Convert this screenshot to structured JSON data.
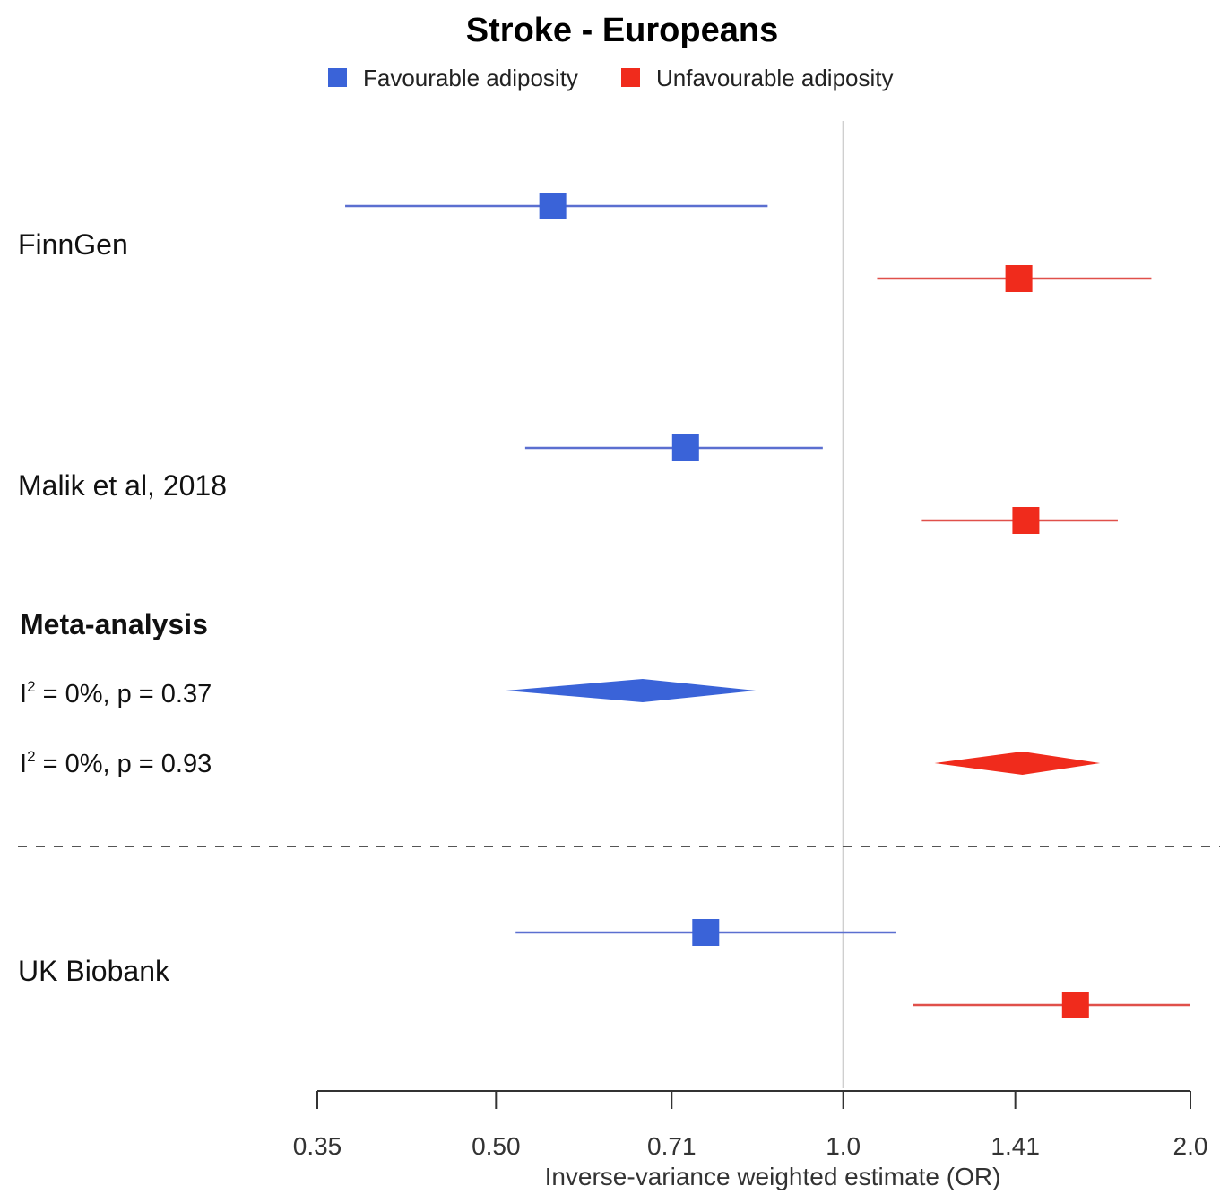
{
  "colors": {
    "favourable": "#3a63d8",
    "unfavourable": "#f02b1c",
    "fav_line": "#5b6fd0",
    "unfav_line": "#e0504a",
    "reference_line": "#cfcfcf",
    "axis": "#333333"
  },
  "chart_data": {
    "type": "forest",
    "title": "Stroke - Europeans",
    "xlabel": "Inverse-variance weighted estimate (OR)",
    "x_scale": "log",
    "xlim": [
      0.35,
      2.0
    ],
    "x_ticks": [
      "0.35",
      "0.50",
      "0.71",
      "1.0",
      "1.41",
      "2.0"
    ],
    "x_tick_values": [
      0.35,
      0.5,
      0.71,
      1.0,
      1.41,
      2.0
    ],
    "reference_value": 1.0,
    "legend": {
      "position": "top",
      "entries": [
        "Favourable adiposity",
        "Unfavourable adiposity"
      ]
    },
    "studies": [
      {
        "label": "FinnGen",
        "favourable": {
          "or": 0.56,
          "lower": 0.37,
          "upper": 0.86
        },
        "unfavourable": {
          "or": 1.42,
          "lower": 1.07,
          "upper": 1.85
        }
      },
      {
        "label": "Malik et al, 2018",
        "favourable": {
          "or": 0.73,
          "lower": 0.53,
          "upper": 0.96
        },
        "unfavourable": {
          "or": 1.44,
          "lower": 1.17,
          "upper": 1.73
        }
      }
    ],
    "meta_analysis": {
      "heading": "Meta-analysis",
      "favourable": {
        "or": 0.67,
        "lower": 0.51,
        "upper": 0.84,
        "stat_prefix": "I",
        "stat_sup": "2",
        "stat_rest": " = 0%, p = 0.37"
      },
      "unfavourable": {
        "or": 1.43,
        "lower": 1.2,
        "upper": 1.67,
        "stat_prefix": "I",
        "stat_sup": "2",
        "stat_rest": " = 0%, p = 0.93"
      }
    },
    "separate_study": {
      "label": "UK Biobank",
      "favourable": {
        "or": 0.76,
        "lower": 0.52,
        "upper": 1.11
      },
      "unfavourable": {
        "or": 1.59,
        "lower": 1.15,
        "upper": 2.0
      }
    }
  }
}
